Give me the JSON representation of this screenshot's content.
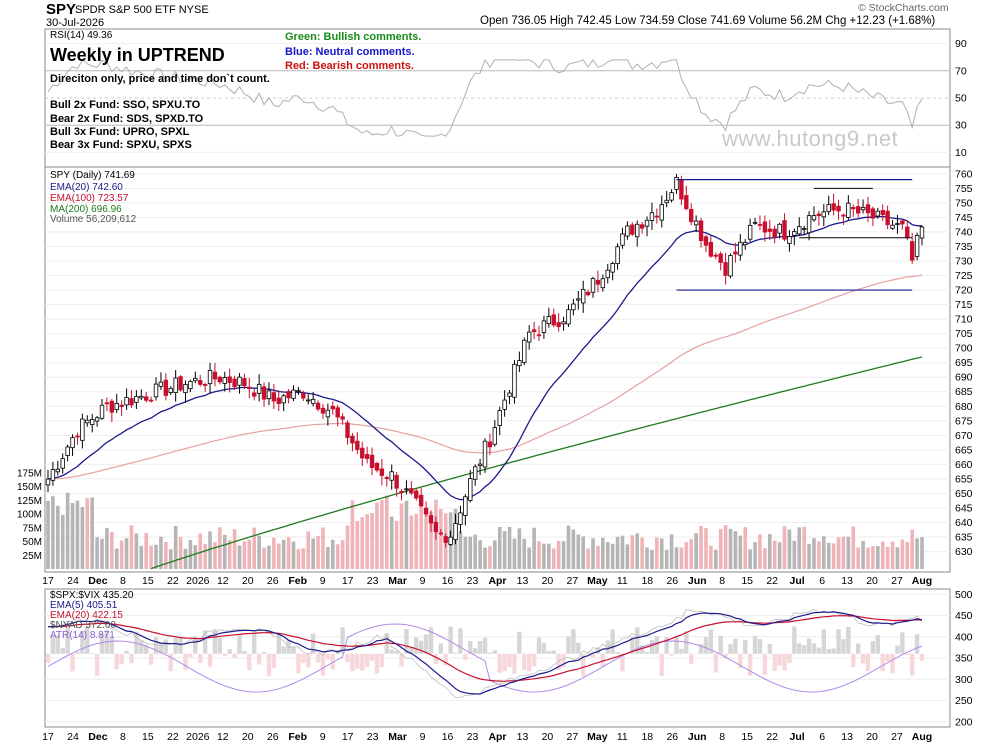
{
  "header": {
    "symbol": "SPY",
    "name": "SPDR S&P 500 ETF  NYSE",
    "date": "30-Jul-2026",
    "quote": "Open 736.05  High 742.45  Low 734.59  Close 741.69  Volume 56.2M  Chg +12.23 (+1.68%)",
    "logo": "© StockCharts.com"
  },
  "annotation": {
    "title": "Weekly in UPTREND",
    "subtitle": "Direciton only, price and time don`t count.",
    "funds": [
      "Bull 2x Fund: SSO, SPXU.TO",
      "Bear 2x Fund: SDS, SPXD.TO",
      "Bull 3x Fund: UPRO, SPXL",
      "Bear 3x Fund: SPXU, SPXS"
    ],
    "legend_green": "Green: Bullish comments.",
    "legend_blue": "Blue: Neutral comments.",
    "legend_red": "Red: Bearish comments.",
    "watermark": "www.hutong9.net"
  },
  "colors": {
    "up": "#000000",
    "down": "#c8102e",
    "ema20": "#1a1a8c",
    "ema100": "#e8a0a0",
    "ma200": "#1e7a1e",
    "vol_up": "#b5b5b5",
    "vol_down": "#f0b4b8",
    "atr": "#b08ce8",
    "nyad": "#c8c8c8",
    "resistance": "#1a1a8c"
  },
  "chart_data": [
    {
      "type": "line",
      "panel": "RSI",
      "legend": "RSI(14) 49.36",
      "y_ticks": [
        10,
        30,
        50,
        70,
        90
      ],
      "ylim": [
        0,
        100
      ],
      "overbought": 70,
      "oversold": 30,
      "last": 49.36,
      "x": [
        "Jun",
        "Jun",
        "Jun",
        "Jul",
        "Jul",
        "Jul",
        "Jul",
        "Jul",
        "Jul",
        "Aug"
      ],
      "values": [
        62,
        58,
        55,
        60,
        57,
        55,
        52,
        50,
        47,
        49.36
      ]
    },
    {
      "type": "candlestick",
      "panel": "Price",
      "legend_price": "SPY (Daily) 741.69",
      "series_legends": [
        "EMA(20) 742.60",
        "EMA(100) 723.57",
        "MA(200) 696.96",
        "Volume 56,209,612"
      ],
      "ylim": [
        624,
        762
      ],
      "y_ticks": [
        630,
        635,
        640,
        645,
        650,
        655,
        660,
        665,
        670,
        675,
        680,
        685,
        690,
        695,
        700,
        705,
        710,
        715,
        720,
        725,
        730,
        735,
        740,
        745,
        750,
        755,
        760
      ],
      "volume_ticks": [
        "25M",
        "50M",
        "75M",
        "100M",
        "125M",
        "150M",
        "175M"
      ],
      "volume_tick_values": [
        25,
        50,
        75,
        100,
        125,
        150,
        175
      ],
      "x_labels": [
        "17",
        "24",
        "Dec",
        "8",
        "15",
        "22",
        "2026",
        "12",
        "20",
        "26",
        "Feb",
        "9",
        "17",
        "23",
        "Mar",
        "9",
        "16",
        "23",
        "Apr",
        "13",
        "20",
        "27",
        "May",
        "11",
        "18",
        "26",
        "Jun",
        "8",
        "15",
        "22",
        "Jul",
        "6",
        "13",
        "20",
        "27",
        "Aug"
      ],
      "anchors": [
        [
          0,
          655
        ],
        [
          6,
          672
        ],
        [
          12,
          680
        ],
        [
          20,
          684
        ],
        [
          28,
          688
        ],
        [
          35,
          690
        ],
        [
          40,
          688
        ],
        [
          46,
          682
        ],
        [
          52,
          685
        ],
        [
          58,
          678
        ],
        [
          65,
          660
        ],
        [
          70,
          656
        ],
        [
          74,
          648
        ],
        [
          79,
          636
        ],
        [
          82,
          636
        ],
        [
          86,
          654
        ],
        [
          90,
          669
        ],
        [
          98,
          705
        ],
        [
          106,
          712
        ],
        [
          112,
          724
        ],
        [
          118,
          740
        ],
        [
          124,
          748
        ],
        [
          128,
          757
        ],
        [
          134,
          736
        ],
        [
          138,
          728
        ],
        [
          144,
          742
        ],
        [
          150,
          740
        ],
        [
          156,
          746
        ],
        [
          162,
          748
        ],
        [
          168,
          745
        ],
        [
          174,
          741
        ],
        [
          176,
          730
        ],
        [
          178,
          741.69
        ]
      ],
      "ema20_last": 742.6,
      "ema100_last": 723.57,
      "ma200_last": 696.96,
      "resistance": 758,
      "support": 720,
      "range_box_inner": [
        755,
        738
      ]
    },
    {
      "type": "line",
      "panel": "Breadth",
      "series": [
        {
          "name": "$SPX:$VIX 435.20",
          "last": 435.2
        },
        {
          "name": "EMA(5) 405.51",
          "last": 405.51
        },
        {
          "name": "EMA(20) 422.15",
          "last": 422.15
        },
        {
          "name": "$NYAD 372.00",
          "last": 372.0
        },
        {
          "name": "ATR(14) 8.871",
          "last": 8.871
        }
      ],
      "y_ticks": [
        200,
        250,
        300,
        350,
        400,
        450,
        500
      ],
      "ylim": [
        190,
        510
      ]
    }
  ]
}
